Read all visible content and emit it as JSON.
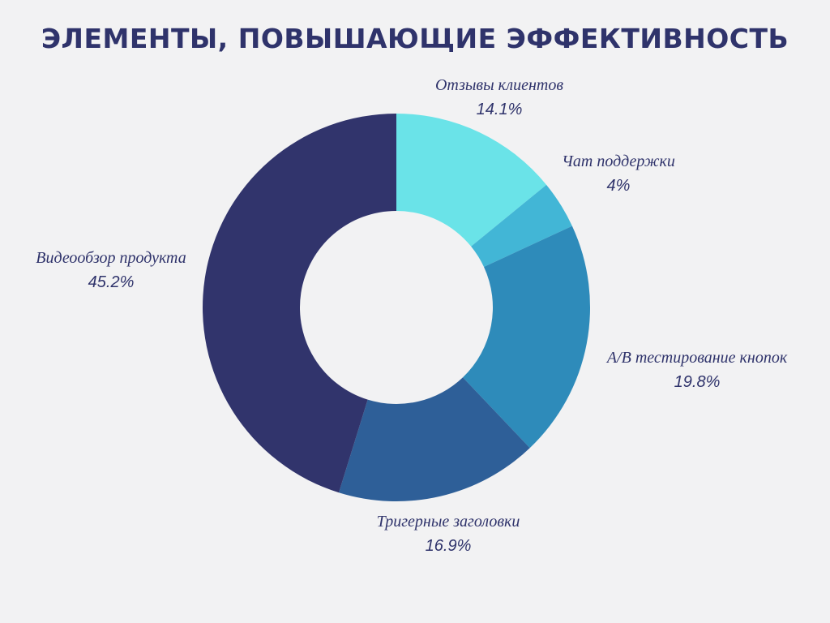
{
  "chart_data": {
    "type": "pie",
    "variant": "donut",
    "title": "ЭЛЕМЕНТЫ, ПОВЫШАЮЩИЕ ЭФФЕКТИВНОСТЬ",
    "categories": [
      "Отзывы клиентов",
      "Чат поддержки",
      "А/В тестирование кнопок",
      "Тригерные заголовки",
      "Видеообзор продукта"
    ],
    "values": [
      14.1,
      4,
      19.8,
      16.9,
      45.2
    ],
    "value_labels": [
      "14.1%",
      "4%",
      "19.8%",
      "16.9%",
      "45.2%"
    ],
    "colors": [
      "#6ae3e8",
      "#42b6d6",
      "#2e8bba",
      "#2e5f98",
      "#31346c"
    ],
    "start": "top, clockwise",
    "background": "#f2f2f3"
  }
}
